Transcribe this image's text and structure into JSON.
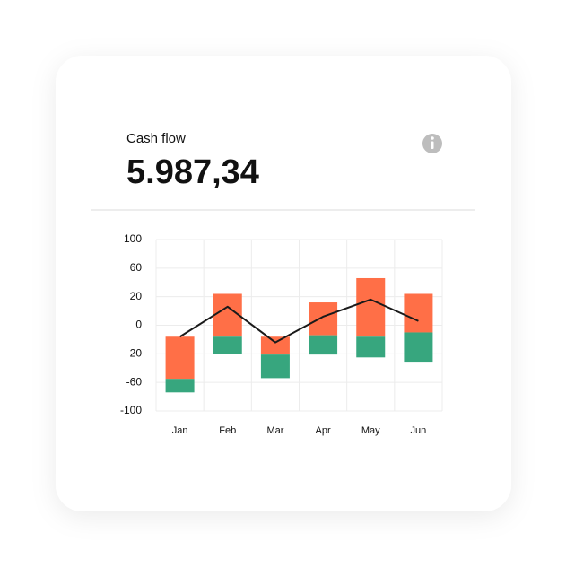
{
  "header": {
    "title": "Cash flow",
    "amount": "5.987,34"
  },
  "chart_data": {
    "type": "floating-bar-line",
    "categories": [
      "Jan",
      "Feb",
      "Mar",
      "Apr",
      "May",
      "Jun"
    ],
    "series": [
      {
        "color": "#ff6f47",
        "values": [
          [
            -8,
            -55
          ],
          [
            24,
            -8
          ],
          [
            -8,
            -21
          ],
          [
            16,
            -7
          ],
          [
            46,
            -8
          ],
          [
            24,
            -5
          ]
        ]
      },
      {
        "color": "#37a67e",
        "values": [
          [
            -55,
            -74
          ],
          [
            -8,
            -20
          ],
          [
            -21,
            -54
          ],
          [
            -7,
            -21
          ],
          [
            -8,
            -25
          ],
          [
            -5,
            -31
          ]
        ]
      }
    ],
    "line": {
      "color": "#1a1a1a",
      "values": [
        -8,
        13,
        -12,
        6,
        18,
        3
      ]
    },
    "ylim": [
      -100,
      100
    ],
    "yticks": [
      100,
      60,
      20,
      0,
      -20,
      -60,
      -100
    ],
    "grid": true
  }
}
